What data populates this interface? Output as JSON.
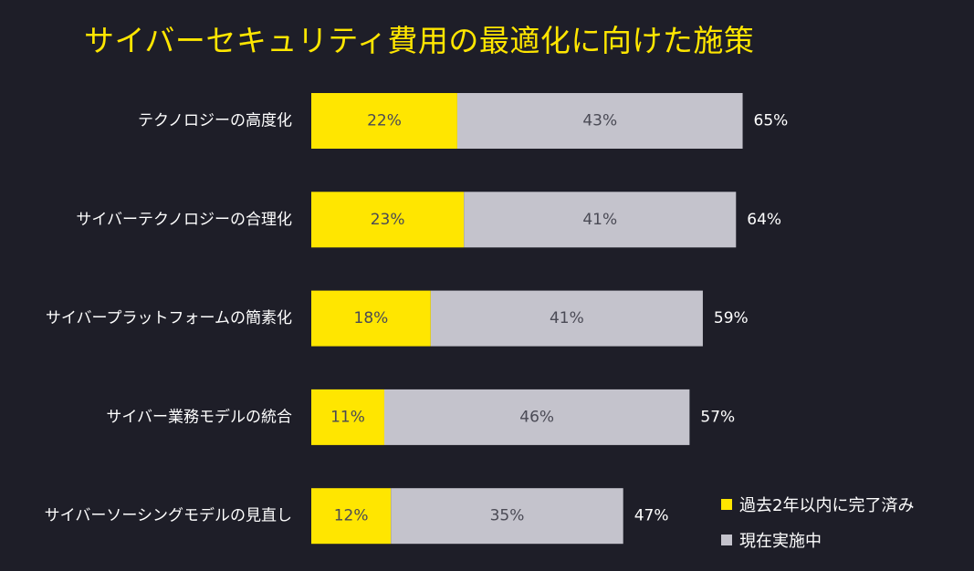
{
  "title": "サイバーセキュリティ費用の最適化に向けた施策",
  "colors": {
    "background": "#1e1e28",
    "accent": "#ffe600",
    "secondary": "#c4c3cc"
  },
  "chart_data": {
    "type": "bar",
    "orientation": "horizontal",
    "stacked": true,
    "categories": [
      "テクノロジーの高度化",
      "サイバーテクノロジーの合理化",
      "サイバープラットフォームの簡素化",
      "サイバー業務モデルの統合",
      "サイバーソーシングモデルの見直し"
    ],
    "series": [
      {
        "name": "過去2年以内に完了済み",
        "color": "#ffe600",
        "values": [
          22,
          23,
          18,
          11,
          12
        ]
      },
      {
        "name": "現在実施中",
        "color": "#c4c3cc",
        "values": [
          43,
          41,
          41,
          46,
          35
        ]
      }
    ],
    "totals": [
      65,
      64,
      59,
      57,
      47
    ],
    "value_suffix": "%",
    "legend_position": "bottom-right",
    "grid": false
  }
}
